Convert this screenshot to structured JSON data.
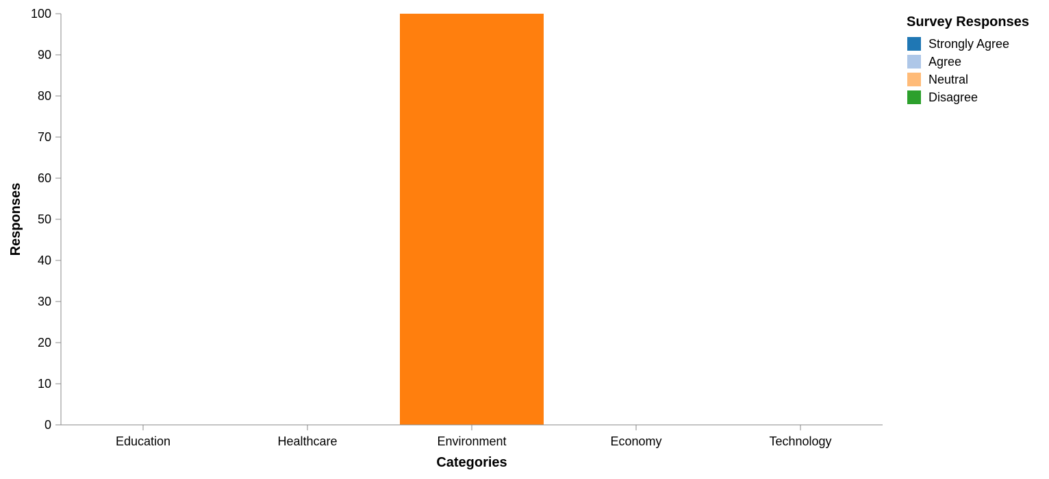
{
  "chart_data": {
    "type": "bar",
    "stacked": true,
    "categories": [
      "Education",
      "Healthcare",
      "Environment",
      "Economy",
      "Technology"
    ],
    "series": [
      {
        "name": "Strongly Agree",
        "color": "#1f77b4",
        "values": [
          0,
          0,
          0,
          0,
          0
        ]
      },
      {
        "name": "Agree",
        "color": "#aec7e8",
        "values": [
          0,
          0,
          0,
          0,
          0
        ]
      },
      {
        "name": "Neutral",
        "color": "#ffbb78",
        "values": [
          0,
          0,
          0,
          0,
          0
        ]
      },
      {
        "name": "Disagree",
        "color": "#2ca02c",
        "values": [
          0,
          0,
          0,
          0,
          0
        ]
      },
      {
        "name": "",
        "color": "#ff7f0e",
        "values": [
          0,
          0,
          100,
          0,
          0
        ]
      }
    ],
    "xlabel": "Categories",
    "ylabel": "Responses",
    "ylim": [
      0,
      100
    ],
    "yticks": [
      0,
      10,
      20,
      30,
      40,
      50,
      60,
      70,
      80,
      90,
      100
    ],
    "grid": false,
    "legend": {
      "title": "Survey Responses",
      "placement": "top-right",
      "entries": [
        {
          "label": "Strongly Agree",
          "color": "#1f77b4"
        },
        {
          "label": "Agree",
          "color": "#aec7e8"
        },
        {
          "label": "Neutral",
          "color": "#ffbb78"
        },
        {
          "label": "Disagree",
          "color": "#2ca02c"
        }
      ]
    }
  }
}
